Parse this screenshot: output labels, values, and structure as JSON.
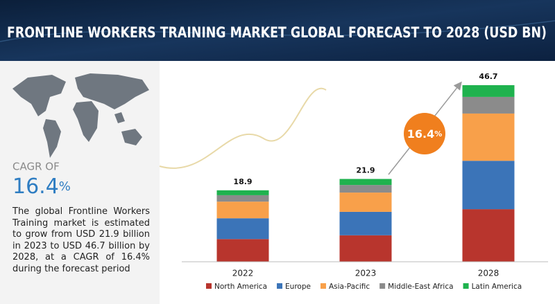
{
  "chart_data": {
    "type": "bar",
    "stacked": true,
    "title": "FRONTLINE WORKERS TRAINING MARKET GLOBAL FORECAST TO 2028 (USD BN)",
    "categories": [
      "2022",
      "2023",
      "2028"
    ],
    "totals": [
      18.9,
      21.9,
      46.7
    ],
    "series": [
      {
        "name": "North America",
        "color": "#b8352d",
        "values": [
          6.0,
          7.0,
          13.9
        ]
      },
      {
        "name": "Europe",
        "color": "#3b74b8",
        "values": [
          5.5,
          6.2,
          12.8
        ]
      },
      {
        "name": "Asia-Pacific",
        "color": "#f8a04a",
        "values": [
          4.4,
          5.1,
          12.5
        ]
      },
      {
        "name": "Middle-East Africa",
        "color": "#8b8b8b",
        "values": [
          1.7,
          2.0,
          4.4
        ]
      },
      {
        "name": "Latin America",
        "color": "#1fb24e",
        "values": [
          1.3,
          1.6,
          3.1
        ]
      }
    ],
    "legend": "bottom"
  },
  "cagr": {
    "label": "CAGR OF",
    "number": "16.4",
    "unit": "%"
  },
  "description": "The global Frontline Workers Training market is estimated to grow from USD 21.9 billion in 2023 to USD 46.7 billion by 2028, at a CAGR of 16.4% during the forecast period"
}
